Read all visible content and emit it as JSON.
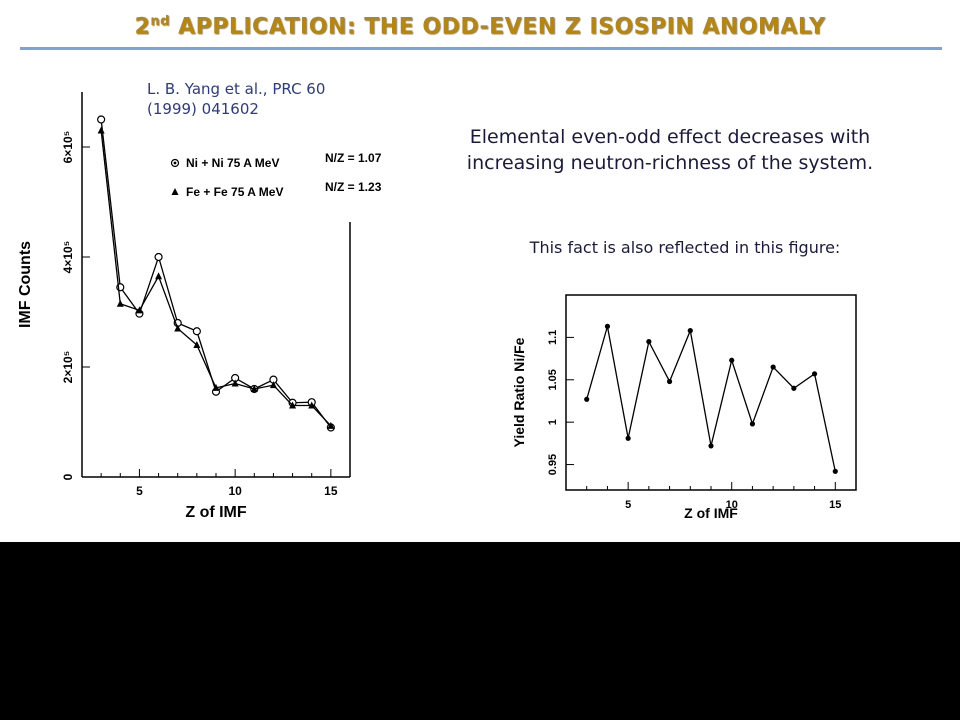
{
  "title": {
    "prefix": "2",
    "sup": "nd",
    "rest": " APPLICATION: THE ODD-EVEN Z ISOSPIN ANOMALY"
  },
  "reference": {
    "line1": "L. B. Yang et al., PRC 60",
    "line2": "(1999) 041602"
  },
  "statement": {
    "line1": "Elemental even-odd effect decreases with",
    "line2": "increasing neutron-richness of the system."
  },
  "fact_text": "This fact is also reflected in this figure:",
  "colors": {
    "title": "#b8860b",
    "rule": "#7aa2dd",
    "ref_text": "#2b3a8a",
    "body_text": "#1a1a40"
  },
  "chart_data": [
    {
      "type": "line",
      "xlabel": "Z of IMF",
      "ylabel": "IMF Counts",
      "xlim": [
        2,
        16
      ],
      "ylim": [
        0,
        700000
      ],
      "xticks": [
        {
          "v": 5,
          "label": "5"
        },
        {
          "v": 10,
          "label": "10"
        },
        {
          "v": 15,
          "label": "15"
        }
      ],
      "yticks": [
        {
          "v": 0,
          "label": "0"
        },
        {
          "v": 200000,
          "label": "2×10⁵"
        },
        {
          "v": 400000,
          "label": "4×10⁵"
        },
        {
          "v": 600000,
          "label": "6×10⁵"
        }
      ],
      "series": [
        {
          "name": "Ni + Ni 75 A MeV",
          "marker": "circle",
          "nz_label": "N/Z = 1.07",
          "x": [
            3,
            4,
            5,
            6,
            7,
            8,
            9,
            10,
            11,
            12,
            13,
            14,
            15
          ],
          "values": [
            650000,
            345000,
            297000,
            400000,
            280000,
            265000,
            155000,
            180000,
            160000,
            177000,
            135000,
            136000,
            90000
          ]
        },
        {
          "name": "Fe + Fe 75 A MeV",
          "marker": "triangle",
          "nz_label": "N/Z = 1.23",
          "x": [
            3,
            4,
            5,
            6,
            7,
            8,
            9,
            10,
            11,
            12,
            13,
            14,
            15
          ],
          "values": [
            630000,
            315000,
            303000,
            365000,
            270000,
            240000,
            162000,
            170000,
            160000,
            167000,
            130000,
            130000,
            93000
          ]
        }
      ]
    },
    {
      "type": "line",
      "xlabel": "Z of IMF",
      "ylabel": "Yield Ratio Ni/Fe",
      "xlim": [
        2,
        16
      ],
      "ylim": [
        0.92,
        1.15
      ],
      "xticks": [
        {
          "v": 5,
          "label": "5"
        },
        {
          "v": 10,
          "label": "10"
        },
        {
          "v": 15,
          "label": "15"
        }
      ],
      "yticks": [
        {
          "v": 0.95,
          "label": "0.95"
        },
        {
          "v": 1.0,
          "label": "1"
        },
        {
          "v": 1.05,
          "label": "1.05"
        },
        {
          "v": 1.1,
          "label": "1.1"
        }
      ],
      "series": [
        {
          "x": [
            3,
            4,
            5,
            6,
            7,
            8,
            9,
            10,
            11,
            12,
            13,
            14,
            15
          ],
          "values": [
            1.027,
            1.113,
            0.981,
            1.095,
            1.048,
            1.108,
            0.972,
            1.073,
            0.998,
            1.065,
            1.04,
            1.057,
            0.942
          ]
        }
      ]
    }
  ]
}
